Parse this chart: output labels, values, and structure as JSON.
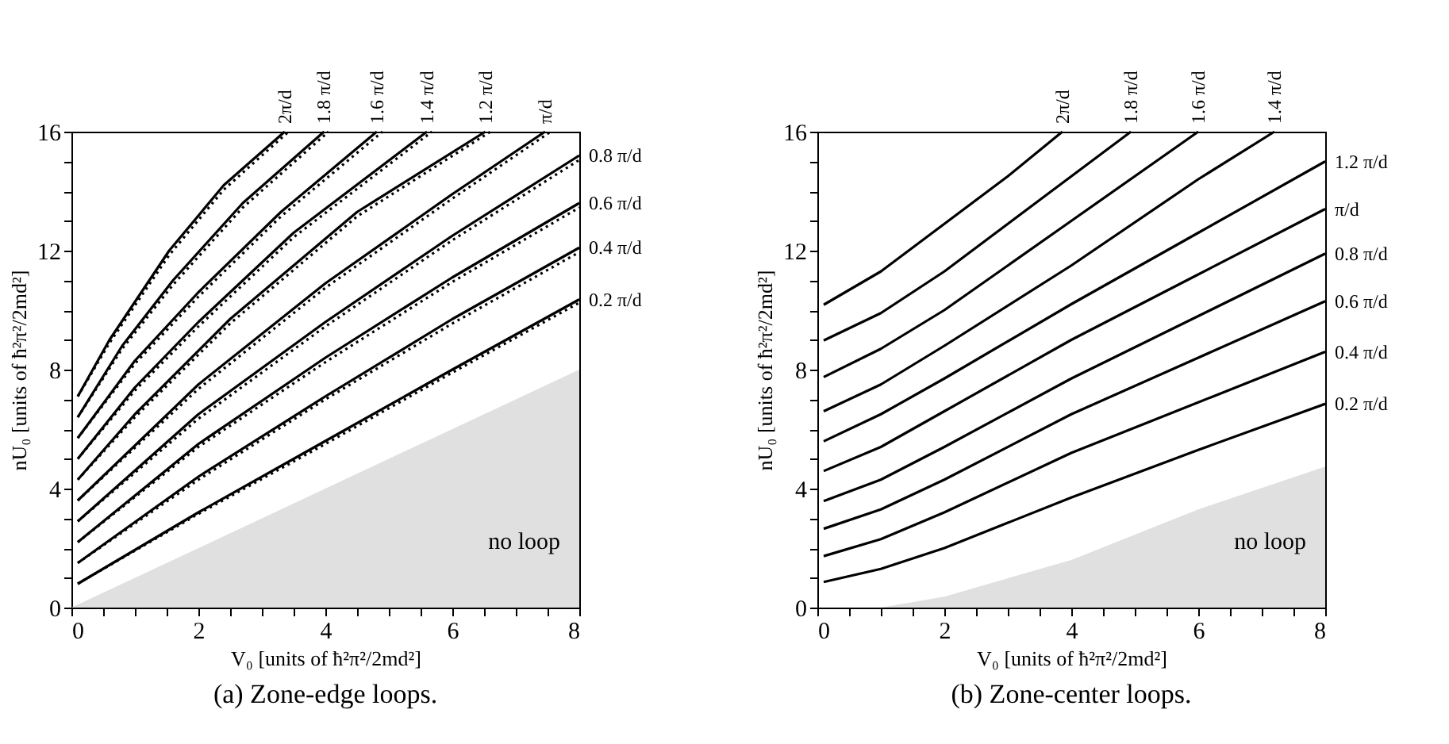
{
  "chart_data": [
    {
      "type": "line",
      "title": "(a) Zone-edge loops.",
      "xlabel": "V₀  [units of ħ²π²/2md²]",
      "ylabel": "nU₀  [units of ħ²π²/2md²]",
      "xlim": [
        0,
        8
      ],
      "ylim": [
        0,
        16
      ],
      "grid": false,
      "xticks": [
        0,
        {
          "value": 0.5,
          "label": null
        },
        {
          "value": 1,
          "label": null
        },
        {
          "value": 1.5,
          "label": null
        },
        2,
        {
          "value": 2.5,
          "label": null
        },
        {
          "value": 3,
          "label": null
        },
        {
          "value": 3.5,
          "label": null
        },
        4,
        {
          "value": 4.5,
          "label": null
        },
        {
          "value": 5,
          "label": null
        },
        {
          "value": 5.5,
          "label": null
        },
        6,
        {
          "value": 6.5,
          "label": null
        },
        {
          "value": 7,
          "label": null
        },
        {
          "value": 7.5,
          "label": null
        },
        8
      ],
      "yticks": [
        0,
        {
          "value": 1,
          "label": null
        },
        {
          "value": 2,
          "label": null
        },
        {
          "value": 3,
          "label": null
        },
        4,
        {
          "value": 5,
          "label": null
        },
        {
          "value": 6,
          "label": null
        },
        {
          "value": 7,
          "label": null
        },
        8,
        {
          "value": 9,
          "label": null
        },
        {
          "value": 10,
          "label": null
        },
        {
          "value": 11,
          "label": null
        },
        12,
        {
          "value": 13,
          "label": null
        },
        {
          "value": 14,
          "label": null
        },
        {
          "value": 15,
          "label": null
        },
        16
      ],
      "annotations": [
        "no loop"
      ],
      "series": [
        {
          "type": "area",
          "color": "#e0e0e0",
          "x": [
            0,
            8
          ],
          "values": [
            0,
            8
          ]
        },
        {
          "name": "0.2 π/d",
          "color": "#000000",
          "line_style": "solid",
          "x": [
            0.1,
            2,
            4,
            6,
            8
          ],
          "values": [
            0.8,
            3.2,
            5.6,
            8.0,
            10.36
          ]
        },
        {
          "name": "0.4 π/d",
          "color": "#000000",
          "line_style": "solid",
          "x": [
            0.1,
            2,
            4,
            6,
            8
          ],
          "values": [
            1.5,
            4.4,
            7.1,
            9.7,
            12.1
          ]
        },
        {
          "name": "0.6 π/d",
          "color": "#000000",
          "line_style": "solid",
          "x": [
            0.1,
            2,
            4,
            6,
            8
          ],
          "values": [
            2.2,
            5.5,
            8.4,
            11.1,
            13.6
          ]
        },
        {
          "name": "0.8 π/d",
          "color": "#000000",
          "line_style": "solid",
          "x": [
            0.1,
            2,
            4,
            6,
            8
          ],
          "values": [
            2.9,
            6.5,
            9.6,
            12.5,
            15.2
          ]
        },
        {
          "name": "π/d",
          "color": "#000000",
          "line_style": "solid",
          "x": [
            0.1,
            2,
            4,
            6,
            7.46
          ],
          "values": [
            3.6,
            7.5,
            10.9,
            13.9,
            16
          ]
        },
        {
          "name": "1.2 π/d",
          "color": "#000000",
          "line_style": "solid",
          "x": [
            0.1,
            1,
            2.5,
            4.5,
            6.52
          ],
          "values": [
            4.3,
            6.5,
            9.7,
            13.3,
            16
          ]
        },
        {
          "name": "1.4 π/d",
          "color": "#000000",
          "line_style": "solid",
          "x": [
            0.1,
            1,
            2,
            3.5,
            5.6
          ],
          "values": [
            5.0,
            7.4,
            9.6,
            12.6,
            16
          ]
        },
        {
          "name": "1.6 π/d",
          "color": "#000000",
          "line_style": "solid",
          "x": [
            0.1,
            1,
            2,
            3.3,
            4.81
          ],
          "values": [
            5.7,
            8.3,
            10.6,
            13.3,
            16
          ]
        },
        {
          "name": "1.8 π/d",
          "color": "#000000",
          "line_style": "solid",
          "x": [
            0.1,
            0.8,
            1.6,
            2.7,
            3.98
          ],
          "values": [
            6.4,
            8.8,
            11.0,
            13.6,
            16
          ]
        },
        {
          "name": "2π/d",
          "color": "#000000",
          "line_style": "solid",
          "x": [
            0.1,
            0.6,
            1.54,
            2.4,
            3.36
          ],
          "values": [
            7.1,
            9.0,
            12.0,
            14.2,
            16
          ]
        },
        {
          "color": "#000000",
          "line_style": "dotted",
          "x": [
            0.1,
            2,
            4,
            6,
            8
          ],
          "values": [
            0.8,
            3.15,
            5.5,
            7.9,
            10.25
          ]
        },
        {
          "color": "#000000",
          "line_style": "dotted",
          "x": [
            0.1,
            2,
            4,
            6,
            8
          ],
          "values": [
            1.5,
            4.3,
            7.0,
            9.55,
            11.95
          ]
        },
        {
          "color": "#000000",
          "line_style": "dotted",
          "x": [
            0.1,
            2,
            4,
            6,
            8
          ],
          "values": [
            2.2,
            5.4,
            8.25,
            10.95,
            13.45
          ]
        },
        {
          "color": "#000000",
          "line_style": "dotted",
          "x": [
            0.1,
            2,
            4,
            6,
            8
          ],
          "values": [
            2.9,
            6.35,
            9.45,
            12.35,
            15.05
          ]
        },
        {
          "color": "#000000",
          "line_style": "dotted",
          "x": [
            0.1,
            2,
            4,
            6,
            7.55
          ],
          "values": [
            3.6,
            7.35,
            10.75,
            13.75,
            16
          ]
        },
        {
          "color": "#000000",
          "line_style": "dotted",
          "x": [
            0.1,
            1,
            2.5,
            4.5,
            6.6
          ],
          "values": [
            4.3,
            6.4,
            9.55,
            13.15,
            16
          ]
        },
        {
          "color": "#000000",
          "line_style": "dotted",
          "x": [
            0.1,
            1,
            2,
            3.5,
            5.68
          ],
          "values": [
            5.0,
            7.3,
            9.45,
            12.45,
            16
          ]
        },
        {
          "color": "#000000",
          "line_style": "dotted",
          "x": [
            0.1,
            1,
            2,
            3.3,
            4.9
          ],
          "values": [
            5.7,
            8.2,
            10.45,
            13.15,
            16
          ]
        },
        {
          "color": "#000000",
          "line_style": "dotted",
          "x": [
            0.1,
            0.8,
            1.6,
            2.7,
            4.05
          ],
          "values": [
            6.4,
            8.7,
            10.85,
            13.45,
            16
          ]
        },
        {
          "color": "#000000",
          "line_style": "dotted",
          "x": [
            0.1,
            0.6,
            1.54,
            2.4,
            3.42
          ],
          "values": [
            7.1,
            8.9,
            11.85,
            14.05,
            16
          ]
        }
      ]
    },
    {
      "type": "line",
      "title": "(b) Zone-center loops.",
      "xlabel": "V₀  [units of ħ²π²/2md²]",
      "ylabel": "nU₀  [units of ħ²π²/2md²]",
      "xlim": [
        0,
        8
      ],
      "ylim": [
        0,
        16
      ],
      "grid": false,
      "xticks": [
        0,
        {
          "value": 0.5,
          "label": null
        },
        {
          "value": 1,
          "label": null
        },
        {
          "value": 1.5,
          "label": null
        },
        2,
        {
          "value": 2.5,
          "label": null
        },
        {
          "value": 3,
          "label": null
        },
        {
          "value": 3.5,
          "label": null
        },
        4,
        {
          "value": 4.5,
          "label": null
        },
        {
          "value": 5,
          "label": null
        },
        {
          "value": 5.5,
          "label": null
        },
        6,
        {
          "value": 6.5,
          "label": null
        },
        {
          "value": 7,
          "label": null
        },
        {
          "value": 7.5,
          "label": null
        },
        8
      ],
      "yticks": [
        0,
        {
          "value": 1,
          "label": null
        },
        {
          "value": 2,
          "label": null
        },
        {
          "value": 3,
          "label": null
        },
        4,
        {
          "value": 5,
          "label": null
        },
        {
          "value": 6,
          "label": null
        },
        {
          "value": 7,
          "label": null
        },
        8,
        {
          "value": 9,
          "label": null
        },
        {
          "value": 10,
          "label": null
        },
        {
          "value": 11,
          "label": null
        },
        12,
        {
          "value": 13,
          "label": null
        },
        {
          "value": 14,
          "label": null
        },
        {
          "value": 15,
          "label": null
        },
        16
      ],
      "annotations": [
        "no loop"
      ],
      "series": [
        {
          "type": "area",
          "color": "#e0e0e0",
          "x": [
            1,
            2,
            4,
            6,
            8
          ],
          "values": [
            0,
            0.37,
            1.6,
            3.3,
            4.74
          ]
        },
        {
          "name": "0.2 π/d",
          "color": "#000000",
          "line_style": "solid",
          "x": [
            0.1,
            1,
            2,
            4,
            6,
            8
          ],
          "values": [
            0.86,
            1.3,
            2.0,
            3.7,
            5.3,
            6.85
          ]
        },
        {
          "name": "0.4 π/d",
          "color": "#000000",
          "line_style": "solid",
          "x": [
            0.1,
            1,
            2,
            4,
            6,
            8
          ],
          "values": [
            1.73,
            2.3,
            3.2,
            5.2,
            6.9,
            8.6
          ]
        },
        {
          "name": "0.6 π/d",
          "color": "#000000",
          "line_style": "solid",
          "x": [
            0.1,
            1,
            2,
            4,
            6,
            8
          ],
          "values": [
            2.65,
            3.3,
            4.3,
            6.5,
            8.4,
            10.3
          ]
        },
        {
          "name": "0.8 π/d",
          "color": "#000000",
          "line_style": "solid",
          "x": [
            0.1,
            1,
            2,
            4,
            6,
            8
          ],
          "values": [
            3.58,
            4.3,
            5.4,
            7.7,
            9.8,
            11.9
          ]
        },
        {
          "name": "π/d",
          "color": "#000000",
          "line_style": "solid",
          "x": [
            0.1,
            1,
            2,
            4,
            6,
            8
          ],
          "values": [
            4.59,
            5.4,
            6.6,
            9.0,
            11.2,
            13.4
          ]
        },
        {
          "name": "1.2 π/d",
          "color": "#000000",
          "line_style": "solid",
          "x": [
            0.1,
            1,
            2,
            4,
            6,
            8
          ],
          "values": [
            5.59,
            6.5,
            7.7,
            10.2,
            12.6,
            15.0
          ]
        },
        {
          "name": "1.4 π/d",
          "color": "#000000",
          "line_style": "solid",
          "x": [
            0.1,
            1,
            2,
            4,
            6,
            7.2
          ],
          "values": [
            6.6,
            7.5,
            8.8,
            11.5,
            14.4,
            16
          ]
        },
        {
          "name": "1.6 π/d",
          "color": "#000000",
          "line_style": "solid",
          "x": [
            0.1,
            1,
            2,
            4,
            6
          ],
          "values": [
            7.75,
            8.7,
            10.0,
            13.0,
            16
          ]
        },
        {
          "name": "1.8 π/d",
          "color": "#000000",
          "line_style": "solid",
          "x": [
            0.1,
            1,
            2,
            3.5,
            4.94
          ],
          "values": [
            8.98,
            9.9,
            11.3,
            13.7,
            16
          ]
        },
        {
          "name": "2π/d",
          "color": "#000000",
          "line_style": "solid",
          "x": [
            0.1,
            1,
            2,
            3,
            3.86
          ],
          "values": [
            10.18,
            11.3,
            12.9,
            14.5,
            16
          ]
        }
      ]
    }
  ]
}
